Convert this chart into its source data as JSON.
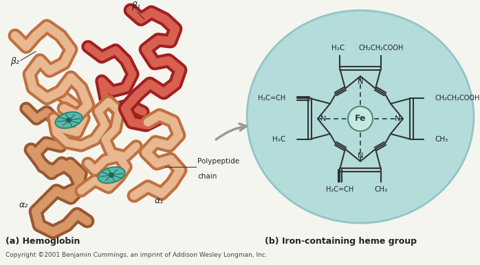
{
  "bg_color": "#f5f5f0",
  "title_a": "(a) Hemoglobin",
  "title_b": "(b) Iron-containing heme group",
  "copyright": "Copyright ©2001 Benjamin Cummings, an imprint of Addison Wesley Longman, Inc.",
  "circle_color": "#a8d8d8",
  "circle_edge_color": "#88c0c0",
  "fe_circle_color": "#c8e8e0",
  "fe_circle_edge": "#4a8a7a",
  "bond_color": "#333333",
  "text_color": "#222222",
  "fe_label": "Fe",
  "salmon_color": "#d4956a",
  "red_color": "#c0392b"
}
